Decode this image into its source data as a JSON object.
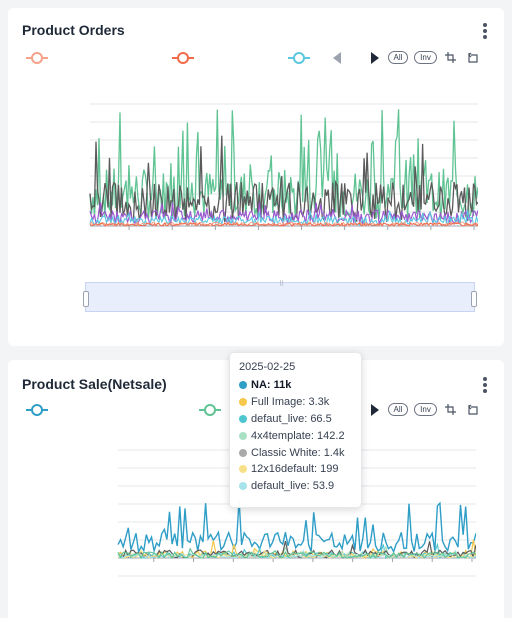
{
  "charts": [
    {
      "title": "Product Orders",
      "legend": [
        {
          "icon": "legend-circle-icon",
          "color": "#f6a189"
        },
        {
          "icon": "legend-circle-icon",
          "color": "#f16a4a"
        },
        {
          "icon": "legend-circle-icon",
          "color": "#5bc8e0"
        }
      ],
      "toolbar": {
        "all_label": "All",
        "inv_label": "Inv"
      }
    },
    {
      "title": "Product Sale(Netsale)",
      "legend": [
        {
          "icon": "legend-circle-icon",
          "color": "#2f9ec7"
        },
        {
          "icon": "legend-circle-icon",
          "color": "#5fc393"
        }
      ],
      "toolbar": {
        "all_label": "All",
        "inv_label": "Inv"
      }
    }
  ],
  "tooltip": {
    "date": "2025-02-25",
    "rows": [
      {
        "label": "NA: 11k",
        "color": "#2f9ec7",
        "bold": true
      },
      {
        "label": "Full Image: 3.3k",
        "color": "#f5c84b"
      },
      {
        "label": "defaut_live: 66.5",
        "color": "#4fc5cf"
      },
      {
        "label": "4x4template: 142.2",
        "color": "#a9e1c5"
      },
      {
        "label": "Classic White: 1.4k",
        "color": "#a9a9a9"
      },
      {
        "label": "12x16default: 199",
        "color": "#f8e08a"
      },
      {
        "label": "default_live: 53.9",
        "color": "#a6e3ea"
      }
    ]
  },
  "chart_data": [
    {
      "type": "line",
      "title": "Product Orders",
      "series": [
        {
          "color": "#5fc393"
        },
        {
          "color": "#5a5a5a"
        },
        {
          "color": "#9b59d0"
        },
        {
          "color": "#5bc8e0"
        },
        {
          "color": "#f6a189"
        },
        {
          "color": "#f16a4a"
        }
      ],
      "grid": true,
      "legend": "top"
    },
    {
      "type": "line",
      "title": "Product Sale(Netsale)",
      "series": [
        {
          "color": "#2f9ec7"
        },
        {
          "color": "#f5c84b"
        },
        {
          "color": "#4fc5cf"
        },
        {
          "color": "#a9e1c5"
        },
        {
          "color": "#5a5a5a"
        },
        {
          "color": "#f8e08a"
        },
        {
          "color": "#a6e3ea"
        },
        {
          "color": "#5fc393"
        }
      ],
      "grid": true,
      "legend": "top"
    }
  ]
}
